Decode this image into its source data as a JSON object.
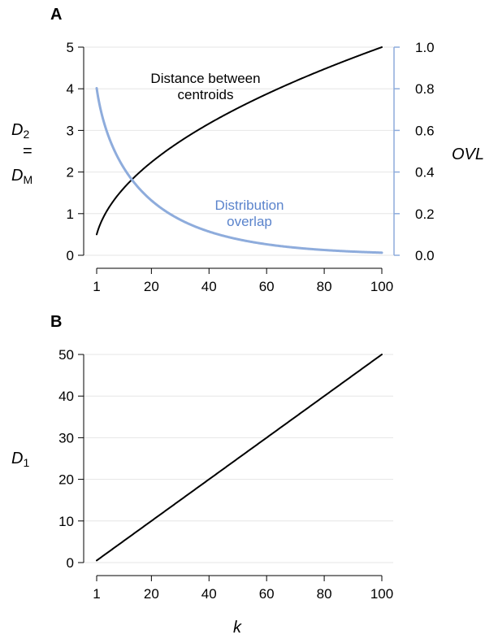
{
  "chart_data": [
    {
      "panel": "A",
      "type": "line",
      "x_ticks": [
        1,
        20,
        40,
        60,
        80,
        100
      ],
      "xlim": [
        1,
        100
      ],
      "y_left": {
        "ticks": [
          0,
          1,
          2,
          3,
          4,
          5
        ],
        "ylim": [
          0,
          5
        ]
      },
      "y_right": {
        "ticks": [
          "0.0",
          "0.2",
          "0.4",
          "0.6",
          "0.8",
          "1.0"
        ],
        "ylim": [
          0,
          1
        ]
      },
      "y_left_label": {
        "line1": "D",
        "line1_sub": "2",
        "line2": "=",
        "line3": "D",
        "line3_sub": "M"
      },
      "y_right_label": "OVL",
      "grid": true,
      "series": [
        {
          "name": "Distance between centroids",
          "axis": "left",
          "color": "#000000",
          "formula": "0.5*sqrt(k)",
          "x": [
            1,
            5,
            10,
            15,
            20,
            30,
            40,
            50,
            60,
            70,
            80,
            90,
            100
          ],
          "y": [
            0.5,
            1.12,
            1.58,
            1.94,
            2.24,
            2.74,
            3.16,
            3.54,
            3.87,
            4.18,
            4.47,
            4.74,
            5.0
          ]
        },
        {
          "name": "Distribution overlap",
          "axis": "right",
          "color": "#8eacdc",
          "formula": "2*Phi(-sqrt(k)/4)",
          "x": [
            1,
            5,
            10,
            15,
            20,
            30,
            40,
            50,
            60,
            70,
            80,
            90,
            100
          ],
          "y": [
            0.8,
            0.57,
            0.43,
            0.33,
            0.26,
            0.17,
            0.11,
            0.077,
            0.053,
            0.036,
            0.025,
            0.018,
            0.012
          ]
        }
      ],
      "annotations": {
        "centroids": [
          "Distance between",
          "centroids"
        ],
        "overlap": [
          "Distribution",
          "overlap"
        ]
      }
    },
    {
      "panel": "B",
      "type": "line",
      "x_ticks": [
        1,
        20,
        40,
        60,
        80,
        100
      ],
      "xlim": [
        1,
        100
      ],
      "y_left": {
        "ticks": [
          0,
          10,
          20,
          30,
          40,
          50
        ],
        "ylim": [
          0,
          50
        ]
      },
      "y_left_label": {
        "text": "D",
        "sub": "1"
      },
      "xlabel": "k",
      "grid": true,
      "series": [
        {
          "name": "",
          "axis": "left",
          "color": "#000000",
          "formula": "k/2",
          "x": [
            1,
            100
          ],
          "y": [
            0.5,
            50
          ]
        }
      ]
    }
  ],
  "colors": {
    "overlap": "#8eacdc",
    "overlap_text": "#5b84cc",
    "line": "#000000",
    "grid": "#e6e6e6"
  }
}
